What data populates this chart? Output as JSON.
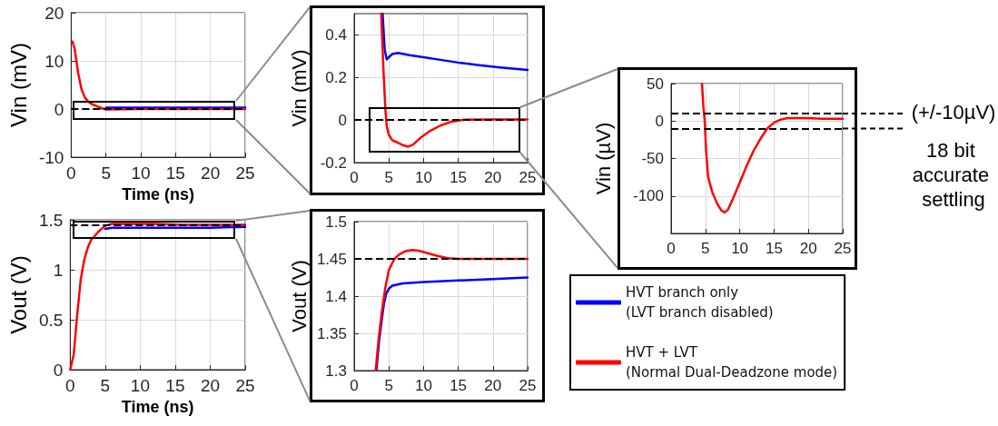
{
  "chart_data": [
    {
      "type": "line",
      "ylabel": "Vin (mV)",
      "xlabel": "Time (ns)",
      "xlim": [
        0,
        25
      ],
      "xticks": [
        0,
        5,
        10,
        15,
        20,
        25
      ],
      "ylim": [
        -10,
        20
      ],
      "yticks": [
        -10,
        0,
        10,
        20
      ],
      "grid": true,
      "line_style": "solid",
      "series": [
        {
          "color": "#0000ff",
          "x": [
            5,
            10,
            15,
            20,
            25
          ],
          "values": [
            0.3,
            0.3,
            0.3,
            0.3,
            0.3
          ]
        },
        {
          "color": "#ff0000",
          "x": [
            0.2,
            0.5,
            1,
            1.5,
            2,
            2.5,
            3,
            4,
            5,
            10,
            15,
            20,
            25
          ],
          "values": [
            14,
            12.5,
            7.5,
            4,
            2.3,
            1.5,
            1,
            0.4,
            -0.1,
            0,
            0,
            0,
            0
          ]
        }
      ],
      "ref_lines": [
        {
          "axis": "y",
          "value": 0,
          "color": "#000000",
          "line_style": "dashed"
        }
      ]
    },
    {
      "type": "line",
      "ylabel": "Vin (mV)",
      "xlim": [
        0,
        25
      ],
      "xticks": [
        0,
        5,
        10,
        15,
        20,
        25
      ],
      "ylim": [
        -0.2,
        0.5
      ],
      "yticks": [
        -0.2,
        0,
        0.2,
        0.4
      ],
      "grid": true,
      "line_style": "solid",
      "series": [
        {
          "color": "#0000ff",
          "x": [
            4.1,
            4.4,
            4.7,
            5.0,
            5.5,
            6.3,
            8,
            10,
            12,
            15,
            18,
            21,
            25
          ],
          "values": [
            0.5,
            0.33,
            0.285,
            0.295,
            0.31,
            0.315,
            0.305,
            0.295,
            0.285,
            0.27,
            0.258,
            0.247,
            0.235
          ]
        },
        {
          "color": "#ff0000",
          "x": [
            3.9,
            4.2,
            4.5,
            4.7,
            5.0,
            5.5,
            6.2,
            7,
            7.8,
            8.5,
            9.5,
            11,
            12.5,
            14,
            16,
            20,
            25
          ],
          "values": [
            0.5,
            0.25,
            0.05,
            -0.03,
            -0.07,
            -0.095,
            -0.105,
            -0.118,
            -0.125,
            -0.115,
            -0.085,
            -0.05,
            -0.025,
            -0.008,
            0.002,
            0.003,
            0.003
          ]
        }
      ],
      "ref_lines": [
        {
          "axis": "y",
          "value": 0,
          "color": "#000000",
          "line_style": "dashed"
        }
      ]
    },
    {
      "type": "line",
      "ylabel": "Vin (µV)",
      "xlim": [
        0,
        25
      ],
      "xticks": [
        0,
        5,
        10,
        15,
        20,
        25
      ],
      "ylim": [
        -150,
        50
      ],
      "yticks": [
        -100,
        -50,
        0,
        50
      ],
      "grid": true,
      "line_style": "solid",
      "series": [
        {
          "color": "#ff0000",
          "x": [
            4.5,
            4.7,
            4.9,
            5.1,
            5.4,
            6.0,
            6.7,
            7.3,
            7.8,
            8.3,
            9.0,
            10,
            11,
            12,
            13,
            14,
            15,
            16,
            17,
            18,
            20,
            22,
            25
          ],
          "values": [
            50,
            20,
            0,
            -40,
            -75,
            -95,
            -110,
            -119,
            -122,
            -118,
            -104,
            -82,
            -60,
            -40,
            -24,
            -10,
            -2,
            2,
            4,
            4,
            4,
            3,
            3
          ]
        }
      ],
      "ref_lines": [
        {
          "axis": "y",
          "value": 10,
          "color": "#000000",
          "line_style": "dashed"
        },
        {
          "axis": "y",
          "value": -10,
          "color": "#000000",
          "line_style": "dashed"
        }
      ],
      "annotations": [
        "(+/-10µV)",
        "18 bit accurate settling"
      ]
    },
    {
      "type": "line",
      "ylabel": "Vout (V)",
      "xlabel": "Time (ns)",
      "xlim": [
        0,
        25
      ],
      "xticks": [
        0,
        5,
        10,
        15,
        20,
        25
      ],
      "ylim": [
        0,
        1.5
      ],
      "yticks": [
        0,
        0.5,
        1,
        1.5
      ],
      "grid": true,
      "line_style": "solid",
      "series": [
        {
          "color": "#0000ff",
          "x": [
            5,
            6,
            10,
            15,
            20,
            25
          ],
          "values": [
            1.41,
            1.42,
            1.42,
            1.42,
            1.42,
            1.43
          ]
        },
        {
          "color": "#ff0000",
          "x": [
            0,
            0.5,
            1,
            1.5,
            2,
            2.5,
            3,
            4,
            5,
            6,
            8,
            12,
            16,
            25
          ],
          "values": [
            0,
            0.15,
            0.55,
            0.9,
            1.1,
            1.22,
            1.3,
            1.38,
            1.44,
            1.46,
            1.46,
            1.46,
            1.45,
            1.45
          ]
        }
      ],
      "ref_lines": [
        {
          "axis": "y",
          "value": 1.45,
          "color": "#000000",
          "line_style": "dashed"
        }
      ]
    },
    {
      "type": "line",
      "ylabel": "Vout (V)",
      "xlim": [
        0,
        25
      ],
      "xticks": [
        0,
        5,
        10,
        15,
        20,
        25
      ],
      "ylim": [
        1.3,
        1.5
      ],
      "yticks": [
        1.3,
        1.35,
        1.4,
        1.45,
        1.5
      ],
      "grid": true,
      "line_style": "solid",
      "legend": "right",
      "series": [
        {
          "name": "HVT branch only\n(LVT branch disabled)",
          "color": "#0000ff",
          "x": [
            3.2,
            3.6,
            4.0,
            4.3,
            4.6,
            5.0,
            5.5,
            7,
            10,
            15,
            20,
            25
          ],
          "values": [
            1.3,
            1.34,
            1.37,
            1.39,
            1.403,
            1.41,
            1.414,
            1.417,
            1.419,
            1.421,
            1.423,
            1.425
          ]
        },
        {
          "name": "HVT + LVT\n(Normal Dual-Deadzone mode)",
          "color": "#ff0000",
          "x": [
            3.1,
            3.5,
            4.0,
            4.5,
            5.0,
            5.8,
            6.5,
            7.3,
            8.3,
            9.3,
            10.5,
            12,
            13.5,
            15,
            18,
            25
          ],
          "values": [
            1.3,
            1.34,
            1.38,
            1.412,
            1.435,
            1.45,
            1.456,
            1.46,
            1.462,
            1.461,
            1.458,
            1.454,
            1.451,
            1.45,
            1.45,
            1.45
          ]
        }
      ],
      "ref_lines": [
        {
          "axis": "y",
          "value": 1.45,
          "color": "#000000",
          "line_style": "dashed"
        }
      ]
    }
  ]
}
